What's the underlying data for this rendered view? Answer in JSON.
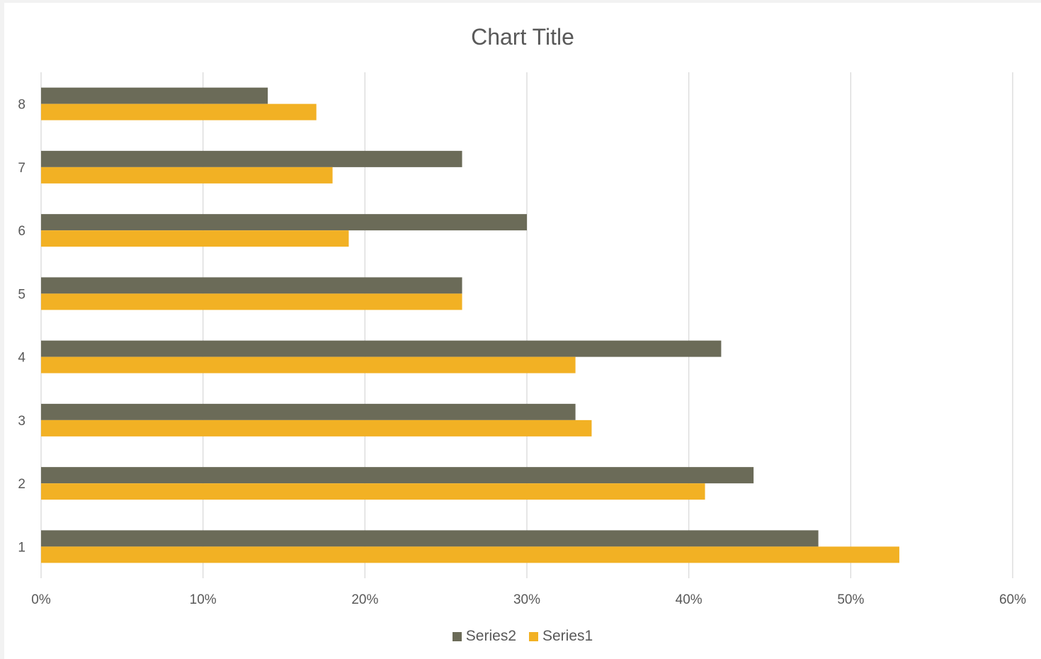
{
  "chart_data": {
    "type": "bar",
    "orientation": "horizontal",
    "title": "Chart Title",
    "categories": [
      "1",
      "2",
      "3",
      "4",
      "5",
      "6",
      "7",
      "8"
    ],
    "series": [
      {
        "name": "Series2",
        "color": "#6b6b58",
        "values": [
          0.48,
          0.44,
          0.33,
          0.42,
          0.26,
          0.3,
          0.26,
          0.14
        ]
      },
      {
        "name": "Series1",
        "color": "#f2b124",
        "values": [
          0.53,
          0.41,
          0.34,
          0.33,
          0.26,
          0.19,
          0.18,
          0.17
        ]
      }
    ],
    "xlim": [
      0,
      0.6
    ],
    "xticks": [
      0,
      0.1,
      0.2,
      0.3,
      0.4,
      0.5,
      0.6
    ],
    "xtick_labels": [
      "0%",
      "10%",
      "20%",
      "30%",
      "40%",
      "50%",
      "60%"
    ],
    "grid": "vertical",
    "legend": "bottom",
    "xlabel": "",
    "ylabel": ""
  }
}
